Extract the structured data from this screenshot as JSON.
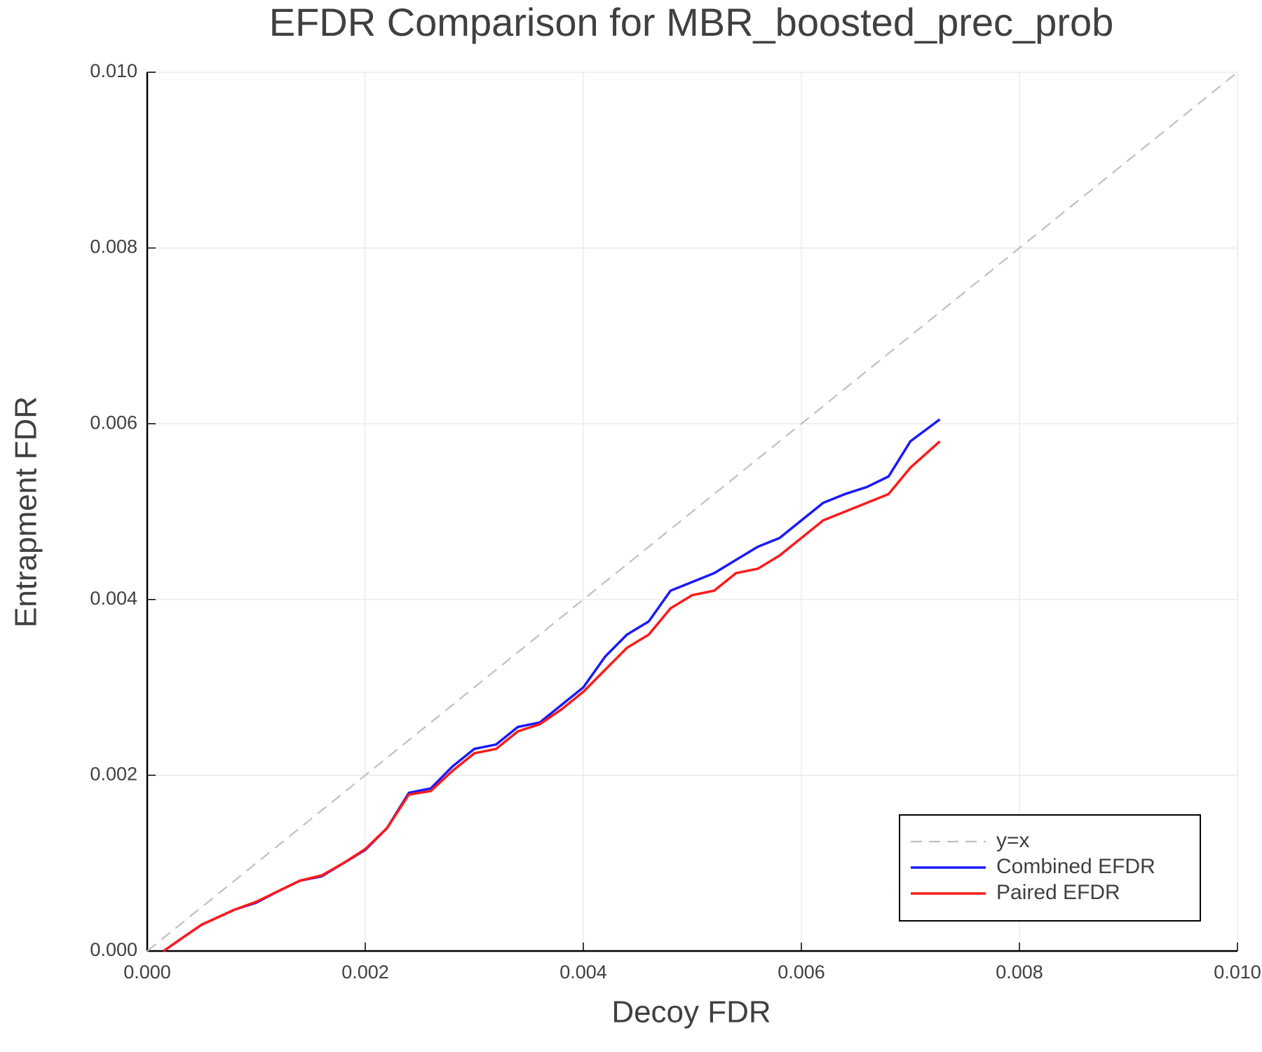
{
  "chart_data": {
    "type": "line",
    "title": "EFDR Comparison for MBR_boosted_prec_prob",
    "x_label": "Decoy FDR",
    "y_label": "Entrapment FDR",
    "xlim": [
      0,
      0.01
    ],
    "ylim": [
      0,
      0.01
    ],
    "xticks": [
      {
        "value": 0,
        "label": "0.000"
      },
      {
        "value": 0.002,
        "label": "0.002"
      },
      {
        "value": 0.004,
        "label": "0.004"
      },
      {
        "value": 0.006,
        "label": "0.006"
      },
      {
        "value": 0.008,
        "label": "0.008"
      },
      {
        "value": 0.01,
        "label": "0.010"
      }
    ],
    "yticks": [
      {
        "value": 0,
        "label": "0.000"
      },
      {
        "value": 0.002,
        "label": "0.002"
      },
      {
        "value": 0.004,
        "label": "0.004"
      },
      {
        "value": 0.006,
        "label": "0.006"
      },
      {
        "value": 0.008,
        "label": "0.008"
      },
      {
        "value": 0.01,
        "label": "0.010"
      }
    ],
    "grid": true,
    "legend_position": "bottom-right",
    "series": [
      {
        "name": "y=x",
        "color": "#c0c0c0",
        "dashed": true,
        "x": [
          0,
          0.01
        ],
        "values": [
          0,
          0.01
        ]
      },
      {
        "name": "Combined EFDR",
        "color": "#1a1aff",
        "dashed": false,
        "x": [
          0.00015,
          0.0003,
          0.0005,
          0.0008,
          0.001,
          0.0012,
          0.0014,
          0.0016,
          0.0018,
          0.002,
          0.0022,
          0.0024,
          0.0026,
          0.0028,
          0.003,
          0.0032,
          0.0034,
          0.0036,
          0.0038,
          0.004,
          0.0042,
          0.0044,
          0.0046,
          0.0048,
          0.005,
          0.0052,
          0.0054,
          0.0056,
          0.0058,
          0.006,
          0.0062,
          0.0064,
          0.0066,
          0.0068,
          0.007,
          0.00727
        ],
        "values": [
          0,
          0.00013,
          0.0003,
          0.00047,
          0.00055,
          0.00068,
          0.0008,
          0.00085,
          0.001,
          0.00115,
          0.0014,
          0.0018,
          0.00185,
          0.0021,
          0.0023,
          0.00235,
          0.00255,
          0.0026,
          0.0028,
          0.003,
          0.00335,
          0.0036,
          0.00375,
          0.0041,
          0.0042,
          0.0043,
          0.00445,
          0.0046,
          0.0047,
          0.0049,
          0.0051,
          0.0052,
          0.00528,
          0.0054,
          0.0058,
          0.00605
        ]
      },
      {
        "name": "Paired EFDR",
        "color": "#ff1a1a",
        "dashed": false,
        "x": [
          0.00015,
          0.0003,
          0.0005,
          0.0008,
          0.001,
          0.0012,
          0.0014,
          0.0016,
          0.0018,
          0.002,
          0.0022,
          0.0024,
          0.0026,
          0.0028,
          0.003,
          0.0032,
          0.0034,
          0.0036,
          0.0038,
          0.004,
          0.0042,
          0.0044,
          0.0046,
          0.0048,
          0.005,
          0.0052,
          0.0054,
          0.0056,
          0.0058,
          0.006,
          0.0062,
          0.0064,
          0.0066,
          0.0068,
          0.007,
          0.00727
        ],
        "values": [
          0,
          0.00013,
          0.0003,
          0.00047,
          0.00056,
          0.00068,
          0.0008,
          0.00086,
          0.001,
          0.00116,
          0.0014,
          0.00178,
          0.00182,
          0.00205,
          0.00225,
          0.0023,
          0.0025,
          0.00258,
          0.00275,
          0.00295,
          0.0032,
          0.00345,
          0.0036,
          0.0039,
          0.00405,
          0.0041,
          0.0043,
          0.00435,
          0.0045,
          0.0047,
          0.0049,
          0.005,
          0.0051,
          0.0052,
          0.0055,
          0.0058
        ]
      }
    ]
  }
}
